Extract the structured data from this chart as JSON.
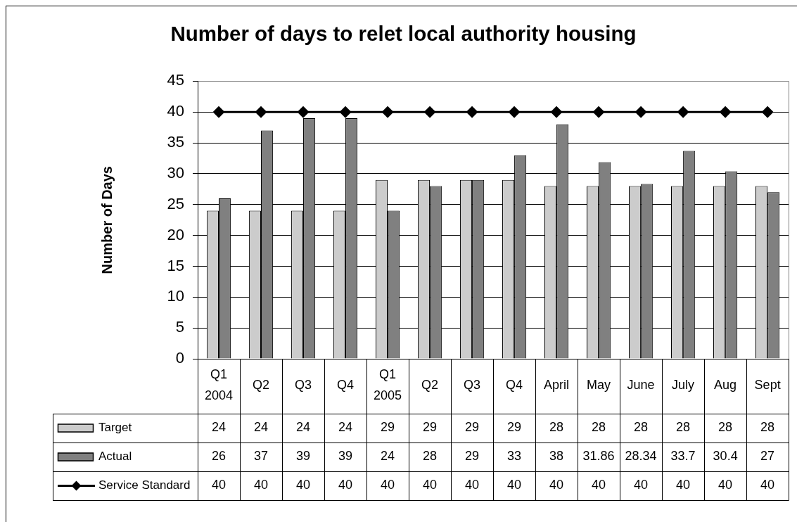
{
  "chart_data": {
    "type": "bar",
    "title": "Number of days to relet local authority housing",
    "ylabel": "Number of Days",
    "categories": [
      "Q1 2004",
      "Q2",
      "Q3",
      "Q4",
      "Q1 2005",
      "Q2",
      "Q3",
      "Q4",
      "April",
      "May",
      "June",
      "July",
      "Aug",
      "Sept"
    ],
    "series": [
      {
        "name": "Target",
        "color": "#cccccc",
        "values": [
          24,
          24,
          24,
          24,
          29,
          29,
          29,
          29,
          28,
          28,
          28,
          28,
          28,
          28
        ]
      },
      {
        "name": "Actual",
        "color": "#808080",
        "values": [
          26,
          37,
          39,
          39,
          24,
          28,
          29,
          33,
          38,
          31.86,
          28.34,
          33.7,
          30.4,
          27
        ]
      },
      {
        "name": "Service Standard",
        "type": "line",
        "color": "#000000",
        "marker": "diamond",
        "line_style": "solid",
        "values": [
          40,
          40,
          40,
          40,
          40,
          40,
          40,
          40,
          40,
          40,
          40,
          40,
          40,
          40
        ]
      }
    ],
    "ylim": [
      0,
      45
    ],
    "yticks": [
      0,
      5,
      10,
      15,
      20,
      25,
      30,
      35,
      40,
      45
    ],
    "grid": "y",
    "legend": "bottom",
    "data_labels": true
  }
}
